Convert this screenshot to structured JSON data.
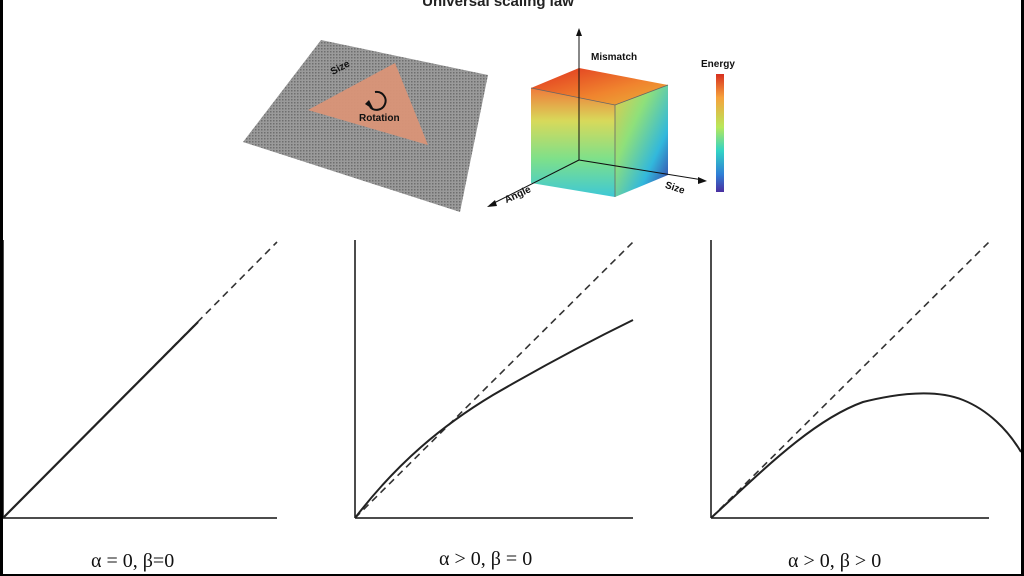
{
  "title": "Universal scaling law",
  "illustration": {
    "triangle_size_label": "Size",
    "triangle_rotation_label": "Rotation",
    "cube_axis_mismatch": "Mismatch",
    "cube_axis_angle": "Angle",
    "cube_axis_size": "Size",
    "colorbar_label": "Energy",
    "colors": {
      "substrate": "#8a8a8a",
      "triangle": "#d99377",
      "energy_high": "#d7301f",
      "energy_mid": "#7ee08a",
      "energy_low": "#4a2fa0"
    }
  },
  "panels": [
    {
      "caption": "α = 0,   β=0",
      "curve": "linear"
    },
    {
      "caption": "α > 0, β = 0",
      "curve": "sublinear"
    },
    {
      "caption": "α > 0, β > 0",
      "curve": "peaked"
    }
  ]
}
